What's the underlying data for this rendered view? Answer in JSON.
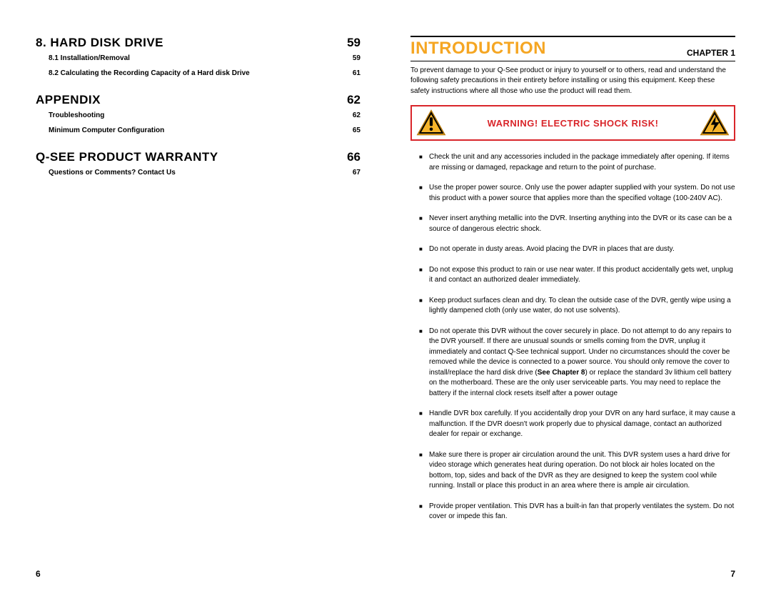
{
  "colors": {
    "accent_orange": "#f5a623",
    "warning_red": "#d9252a",
    "text_black": "#000000",
    "background": "#ffffff"
  },
  "left_page": {
    "page_number": "6",
    "toc": [
      {
        "title": "8. HARD DISK DRIVE",
        "page": "59",
        "subs": [
          {
            "label": "8.1 Installation/Removal",
            "page": "59"
          },
          {
            "label": "8.2 Calculating the Recording Capacity of a Hard disk Drive",
            "page": "61"
          }
        ]
      },
      {
        "title": "APPENDIX",
        "page": "62",
        "subs": [
          {
            "label": "Troubleshooting",
            "page": "62"
          },
          {
            "label": "Minimum Computer Configuration",
            "page": "65"
          }
        ]
      },
      {
        "title": "Q-SEE PRODUCT WARRANTY",
        "page": "66",
        "subs": [
          {
            "label": "Questions or Comments? Contact Us",
            "page": "67"
          }
        ]
      }
    ]
  },
  "right_page": {
    "page_number": "7",
    "title": "INTRODUCTION",
    "chapter": "CHAPTER 1",
    "intro_paragraph": "To prevent damage to your Q-See product or injury to yourself or to others, read and understand the following safety precautions in their entirety before installing or using this equipment. Keep these safety instructions where all those who use the product will read them.",
    "warning_label": "WARNING! ELECTRIC SHOCK RISK!",
    "warning_left_icon": "warning-exclamation-icon",
    "warning_right_icon": "warning-shock-icon",
    "bullets": [
      "Check the unit and any accessories included in the package immediately after opening. If items are missing or damaged, repackage and return to the point of purchase.",
      "Use the proper power source. Only use the power adapter supplied with your system. Do not use this product with a power source that applies more than the specified voltage (100-240V AC).",
      "Never insert anything metallic into the DVR. Inserting anything into the DVR or its case can be a source of dangerous electric shock.",
      "Do not operate in dusty areas. Avoid placing the DVR in places that are dusty.",
      "Do not expose this product to rain or use near water. If this product accidentally gets wet, unplug it and contact an authorized dealer immediately.",
      "Keep product surfaces clean and dry. To clean the outside case of the DVR, gently wipe using a lightly dampened cloth (only use water, do not use solvents).",
      "Do not operate this DVR without the cover securely in place. Do not attempt to do any repairs to the DVR yourself. If there are unusual sounds or smells coming from the DVR, unplug it immediately and contact Q-See technical support. Under no circumstances should the cover be removed while the device is connected to a power source. You should only remove the cover to install/replace the hard disk drive (See Chapter 8) or replace the standard 3v lithium cell battery on the motherboard. These are the only user serviceable parts. You may need to replace the battery if the internal clock resets itself after a power outage",
      "Handle DVR box carefully. If you accidentally drop your DVR on any hard surface, it may cause a malfunction. If the DVR doesn't work properly due to physical damage, contact an authorized dealer for repair or exchange.",
      "Make sure there is proper air circulation around the unit. This DVR system uses a hard drive for video storage which generates heat during operation. Do not block air holes located on the bottom, top, sides and back of the DVR as they are designed to keep the system cool while running. Install or place this product in an area where there is ample air circulation.",
      "Provide proper ventilation. This DVR has a built-in fan that properly ventilates the system. Do not cover or impede this fan."
    ],
    "bold_ref": "See Chapter 8"
  }
}
